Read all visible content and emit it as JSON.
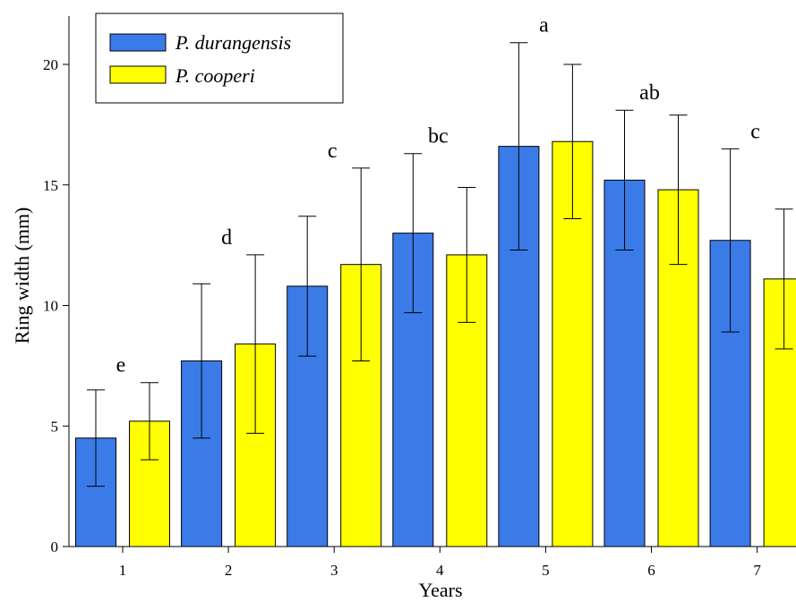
{
  "chart_data": {
    "type": "bar",
    "title": "",
    "xlabel": "Years",
    "ylabel": "Ring width (mm)",
    "ylim": [
      0,
      22
    ],
    "yticks": [
      0,
      5,
      10,
      15,
      20
    ],
    "grid": false,
    "legend_position": "top-left",
    "categories": [
      "1",
      "2",
      "3",
      "4",
      "5",
      "6",
      "7"
    ],
    "series": [
      {
        "name": "P. durangensis",
        "color": "#3b7be8",
        "values": [
          4.5,
          7.7,
          10.8,
          13.0,
          16.6,
          15.2,
          12.7
        ],
        "error": [
          2.0,
          3.2,
          2.9,
          3.3,
          4.3,
          2.9,
          3.8
        ]
      },
      {
        "name": "P. cooperi",
        "color": "#ffff00",
        "values": [
          5.2,
          8.4,
          11.7,
          12.1,
          16.8,
          14.8,
          11.1
        ],
        "error": [
          1.6,
          3.7,
          4.0,
          2.8,
          3.2,
          3.1,
          2.9
        ]
      }
    ],
    "annotations": [
      "e",
      "d",
      "c",
      "bc",
      "a",
      "ab",
      "c"
    ]
  }
}
